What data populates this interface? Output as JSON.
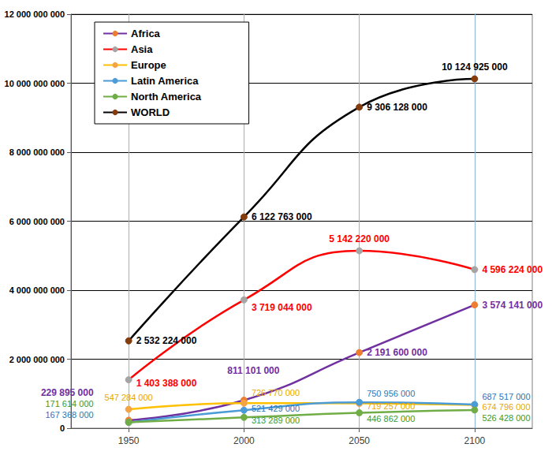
{
  "chart_data": {
    "type": "line",
    "x": [
      1950,
      2000,
      2050,
      2100
    ],
    "xlim": [
      1925,
      2125
    ],
    "xticks": [
      1950,
      2000,
      2050,
      2100
    ],
    "ylim": [
      0,
      12000000000
    ],
    "yticks": [
      0,
      {
        "value": 2000000000,
        "label": "2 000 000 000"
      },
      {
        "value": 4000000000,
        "label": "4 000 000 000"
      },
      {
        "value": 6000000000,
        "label": "6 000 000 000"
      },
      {
        "value": 8000000000,
        "label": "8 000 000 000"
      },
      {
        "value": 10000000000,
        "label": "10 000 000 000"
      },
      {
        "value": 12000000000,
        "label": "12 000 000 000"
      }
    ],
    "grid": true,
    "legend": "upper left",
    "data_labels": true,
    "marker": "circle",
    "line_style": "solid",
    "series": [
      {
        "name": "Africa",
        "color": "#7030a0",
        "values": [
          229895000,
          811101000,
          2191600000,
          3574141000
        ],
        "value_labels": [
          "229 895 000",
          "811 101 000",
          "2 191 600 000",
          "3 574 141 000"
        ]
      },
      {
        "name": "Asia",
        "color": "#ff0000",
        "values": [
          1403388000,
          3719044000,
          5142220000,
          4596224000
        ],
        "value_labels": [
          "1 403 388 000",
          "3 719 044 000",
          "5 142 220 000",
          "4 596 224 000"
        ]
      },
      {
        "name": "Europe",
        "color": "#ffc000",
        "values": [
          547284000,
          726770000,
          719257000,
          674796000
        ],
        "value_labels": [
          "547 284 000",
          "726 770 000",
          "719 257 000",
          "674 796 000"
        ]
      },
      {
        "name": "Latin America",
        "color": "#4a9bd6",
        "values": [
          167368000,
          521429000,
          750956000,
          687517000
        ],
        "value_labels": [
          "167 368 000",
          "521 429 000",
          "750 956 000",
          "687 517 000"
        ]
      },
      {
        "name": "North America",
        "color": "#70ad47",
        "values": [
          171614000,
          313289000,
          446862000,
          526428000
        ],
        "value_labels": [
          "171 614 000",
          "313 289 000",
          "446 862 000",
          "526 428 000"
        ]
      },
      {
        "name": "WORLD",
        "color": "#000000",
        "values": [
          2532224000,
          6122763000,
          9306128000,
          10124925000
        ],
        "value_labels": [
          "2 532 224 000",
          "6 122 763 000",
          "9 306 128 000",
          "10 124 925 000"
        ]
      }
    ]
  }
}
